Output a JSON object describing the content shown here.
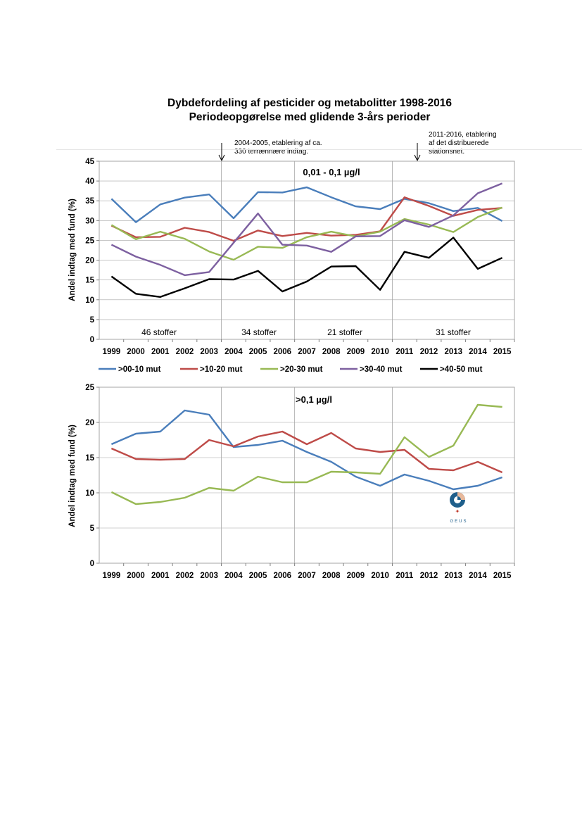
{
  "title": {
    "line1": "Dybdefordeling af pesticider og metabolitter 1998-2016",
    "line2": "Periodeopgørelse med glidende 3-års perioder"
  },
  "annotations": [
    {
      "lines": [
        "2004-2005, etablering af ca.",
        "330 terrænnære indtag."
      ]
    },
    {
      "lines": [
        "2011-2016, etablering",
        "af det distribuerede",
        "stationsnet."
      ]
    }
  ],
  "colors": {
    "s0010": "#4a7ebb",
    "s1020": "#be4b48",
    "s2030": "#98b954",
    "s3040": "#7d60a0",
    "s4050": "#000000",
    "grid": "#a6a6a6",
    "axis": "#808080"
  },
  "chart_data": [
    {
      "type": "line",
      "title": "0,01 - 0,1 µg/l",
      "ylabel": "Andel indtag med fund (%)",
      "xlabel": "",
      "ylim": [
        0,
        45
      ],
      "yticks": [
        "0",
        "5",
        "10",
        "15",
        "20",
        "25",
        "30",
        "35",
        "40",
        "45"
      ],
      "categories": [
        "1999",
        "2000",
        "2001",
        "2002",
        "2003",
        "2004",
        "2005",
        "2006",
        "2007",
        "2008",
        "2009",
        "2010",
        "2011",
        "2012",
        "2013",
        "2014",
        "2015"
      ],
      "period_labels": [
        "46 stoffer",
        "34 stoffer",
        "21 stoffer",
        "31 stoffer"
      ],
      "series": [
        {
          "name": ">00-10 mut",
          "color": "#4a7ebb",
          "values": [
            35.5,
            29.6,
            34.1,
            35.8,
            36.6,
            30.6,
            37.2,
            37.1,
            38.4,
            35.9,
            33.6,
            32.9,
            35.5,
            34.4,
            32.4,
            33.2,
            29.9
          ]
        },
        {
          "name": ">10-20 mut",
          "color": "#be4b48",
          "values": [
            28.7,
            25.8,
            25.9,
            28.2,
            27.1,
            24.9,
            27.5,
            26.1,
            26.9,
            26.2,
            26.4,
            27.3,
            35.9,
            33.7,
            31.2,
            32.7,
            33.2
          ]
        },
        {
          "name": ">20-30 mut",
          "color": "#98b954",
          "values": [
            28.9,
            25.3,
            27.2,
            25.4,
            22.2,
            20.1,
            23.4,
            23.1,
            25.8,
            27.2,
            26.0,
            27.2,
            30.4,
            29.0,
            27.1,
            30.9,
            33.3
          ]
        },
        {
          "name": ">30-40 mut",
          "color": "#7d60a0",
          "values": [
            23.9,
            20.9,
            18.8,
            16.2,
            17.0,
            24.4,
            31.8,
            23.9,
            23.7,
            22.1,
            26.0,
            26.1,
            30.1,
            28.4,
            31.3,
            36.9,
            39.4
          ]
        },
        {
          "name": ">40-50 mut",
          "color": "#000000",
          "values": [
            15.9,
            11.5,
            10.7,
            12.9,
            15.2,
            15.1,
            17.3,
            12.1,
            14.6,
            18.4,
            18.5,
            12.5,
            22.1,
            20.6,
            25.7,
            17.8,
            20.6
          ]
        }
      ]
    },
    {
      "type": "line",
      "title": ">0,1 µg/l",
      "ylabel": "Andel indtag med fund (%)",
      "xlabel": "",
      "ylim": [
        0,
        25
      ],
      "yticks": [
        "0",
        "5",
        "10",
        "15",
        "20",
        "25"
      ],
      "categories": [
        "1999",
        "2000",
        "2001",
        "2002",
        "2003",
        "2004",
        "2005",
        "2006",
        "2007",
        "2008",
        "2009",
        "2010",
        "2011",
        "2012",
        "2013",
        "2014",
        "2015"
      ],
      "series": [
        {
          "name": ">00-10 mut",
          "color": "#4a7ebb",
          "values": [
            16.9,
            18.4,
            18.7,
            21.7,
            21.1,
            16.5,
            16.8,
            17.4,
            15.8,
            14.4,
            12.3,
            11.0,
            12.6,
            11.7,
            10.5,
            11.0,
            12.2
          ]
        },
        {
          "name": ">10-20 mut",
          "color": "#be4b48",
          "values": [
            16.3,
            14.8,
            14.7,
            14.8,
            17.5,
            16.6,
            18.0,
            18.7,
            16.9,
            18.5,
            16.3,
            15.8,
            16.1,
            13.4,
            13.2,
            14.4,
            12.9
          ]
        },
        {
          "name": ">20-30 mut",
          "color": "#98b954",
          "values": [
            10.1,
            8.4,
            8.7,
            9.3,
            10.7,
            10.3,
            12.3,
            11.5,
            11.5,
            13.0,
            12.9,
            12.7,
            17.9,
            15.1,
            16.7,
            22.5,
            22.2
          ]
        }
      ]
    }
  ],
  "legend": [
    ">00-10 mut",
    ">10-20 mut",
    ">20-30 mut",
    ">30-40 mut",
    ">40-50 mut"
  ],
  "logo": {
    "text": "GEUS"
  }
}
